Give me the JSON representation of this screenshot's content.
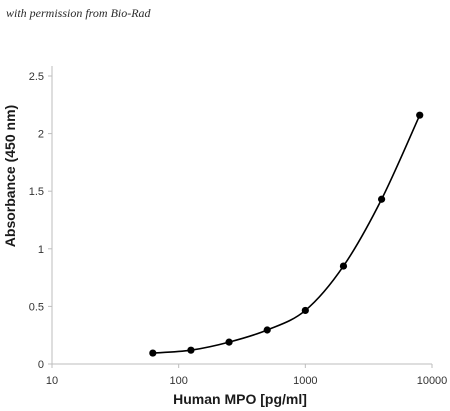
{
  "watermark": "with permission from Bio-Rad",
  "chart_data": {
    "type": "scatter",
    "x_scale": "log",
    "xlabel": "Human MPO [pg/ml]",
    "ylabel": "Absorbance (450 nm)",
    "xlim": [
      10,
      10000
    ],
    "ylim": [
      0,
      2.5
    ],
    "x_ticks": [
      "10",
      "100",
      "1000",
      "10000"
    ],
    "y_ticks": [
      "0",
      "0.5",
      "1",
      "1.5",
      "2",
      "2.5"
    ],
    "grid": false,
    "legend": "none",
    "series": [
      {
        "x": [
          62.5,
          125,
          250,
          500,
          1000,
          2000,
          4000,
          8000
        ],
        "y": [
          0.095,
          0.12,
          0.19,
          0.295,
          0.465,
          0.85,
          1.43,
          2.16
        ]
      }
    ],
    "line_color": "#000000",
    "marker_color": "#000000"
  }
}
